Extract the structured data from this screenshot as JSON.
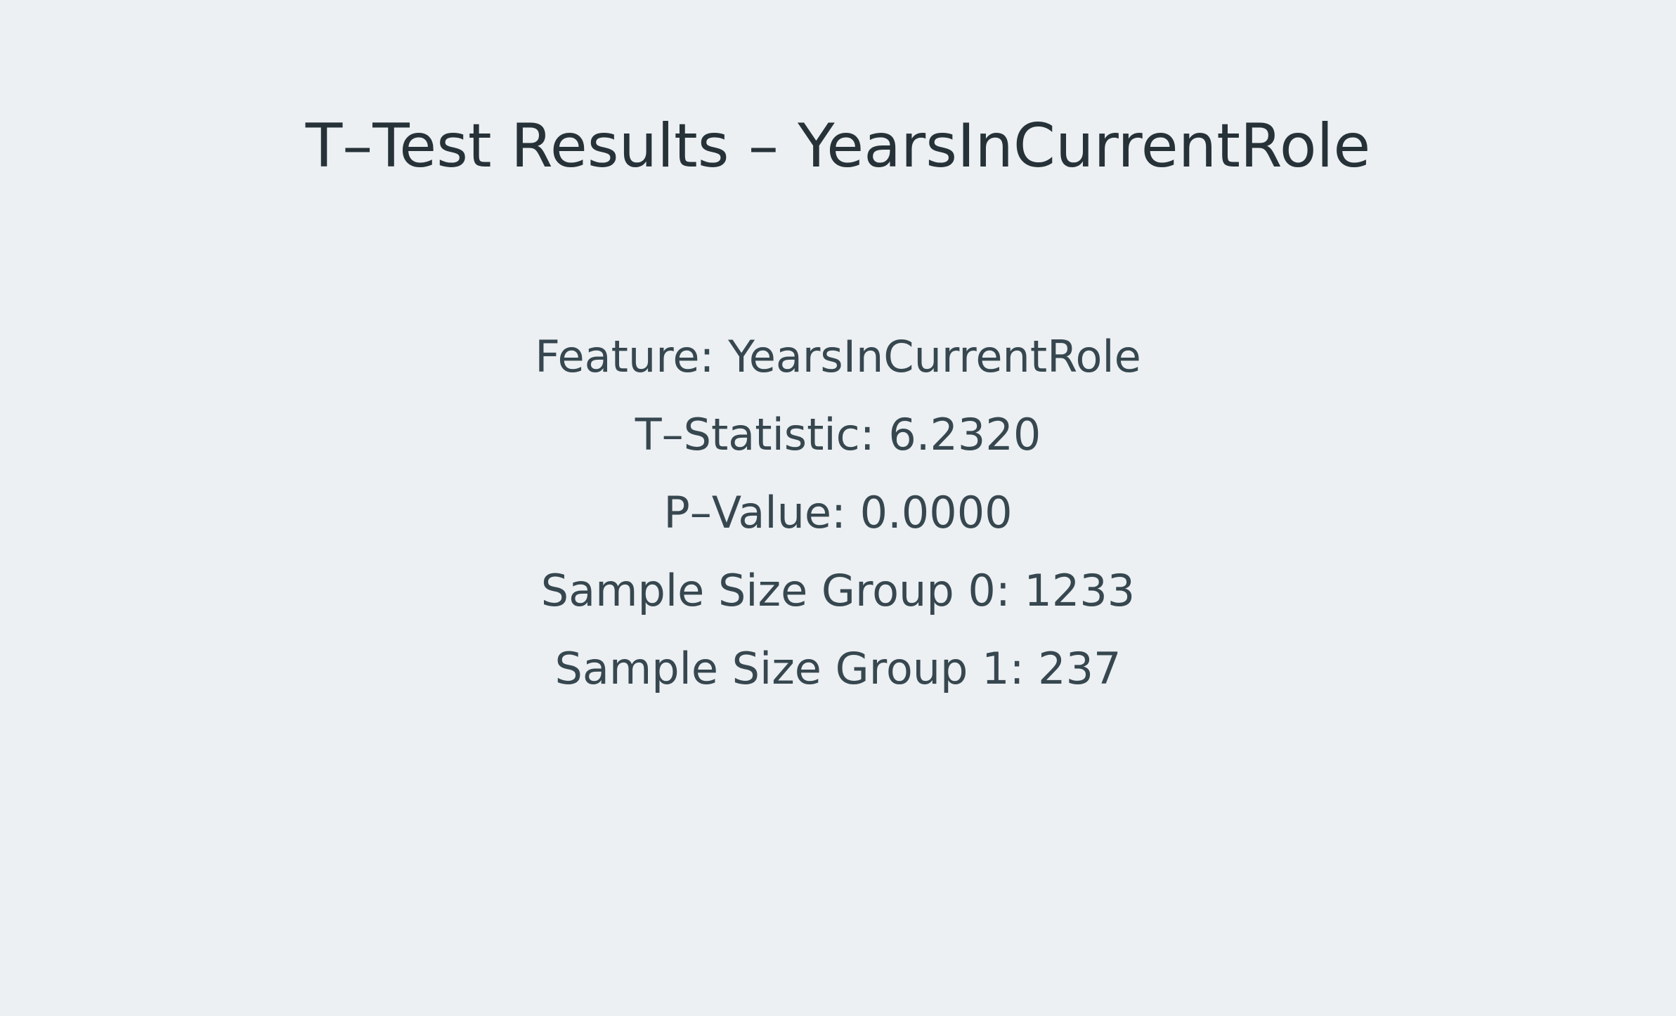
{
  "title": "T–Test Results – YearsInCurrentRole",
  "stats": [
    {
      "text": "Feature: YearsInCurrentRole"
    },
    {
      "text": "T–Statistic: 6.2320"
    },
    {
      "text": "P–Value: 0.0000"
    },
    {
      "text": "Sample Size Group 0: 1233"
    },
    {
      "text": "Sample Size Group 1: 237"
    }
  ],
  "colors": {
    "background": "#ecf0f3",
    "title_text": "#263238",
    "body_text": "#37474f"
  }
}
